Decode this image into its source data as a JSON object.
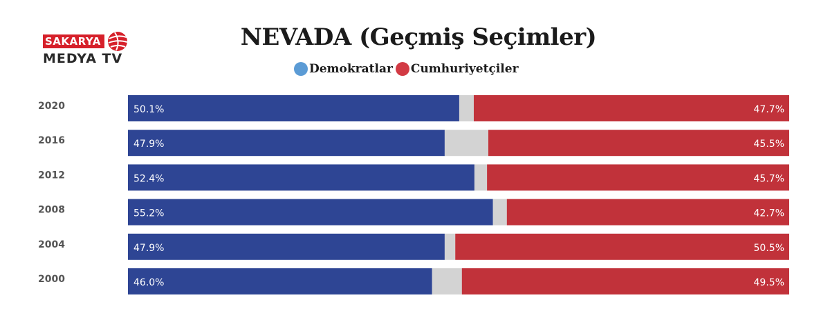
{
  "brand": {
    "line1": "SAKARYA",
    "line2": "MEDYA TV"
  },
  "colors": {
    "democrat": "#2e4594",
    "republican": "#c1323a",
    "other": "#d3d3d3",
    "legend_democrat": "#5b9bd5",
    "legend_republican": "#d23a44",
    "brand_red": "#d6202a"
  },
  "chart_data": {
    "type": "bar",
    "stacked": true,
    "orientation": "horizontal",
    "title": "NEVADA (Geçmiş Seçimler)",
    "legend": [
      {
        "name": "Demokratlar",
        "color": "#5b9bd5"
      },
      {
        "name": "Cumhuriyetçiler",
        "color": "#d23a44"
      }
    ],
    "legend_position": "top-center",
    "xlim": [
      0,
      100
    ],
    "grid": false,
    "categories": [
      "2020",
      "2016",
      "2012",
      "2008",
      "2004",
      "2000"
    ],
    "series": [
      {
        "name": "Demokratlar",
        "values": [
          50.1,
          47.9,
          52.4,
          55.2,
          47.9,
          46.0
        ],
        "labels": [
          "50.1%",
          "47.9%",
          "52.4%",
          "55.2%",
          "47.9%",
          "46.0%"
        ]
      },
      {
        "values": [
          2.2,
          6.6,
          1.9,
          2.1,
          1.6,
          4.5
        ]
      },
      {
        "name": "Cumhuriyetçiler",
        "values": [
          47.7,
          45.5,
          45.7,
          42.7,
          50.5,
          49.5
        ],
        "labels": [
          "47.7%",
          "45.5%",
          "45.7%",
          "42.7%",
          "50.5%",
          "49.5%"
        ]
      }
    ]
  }
}
